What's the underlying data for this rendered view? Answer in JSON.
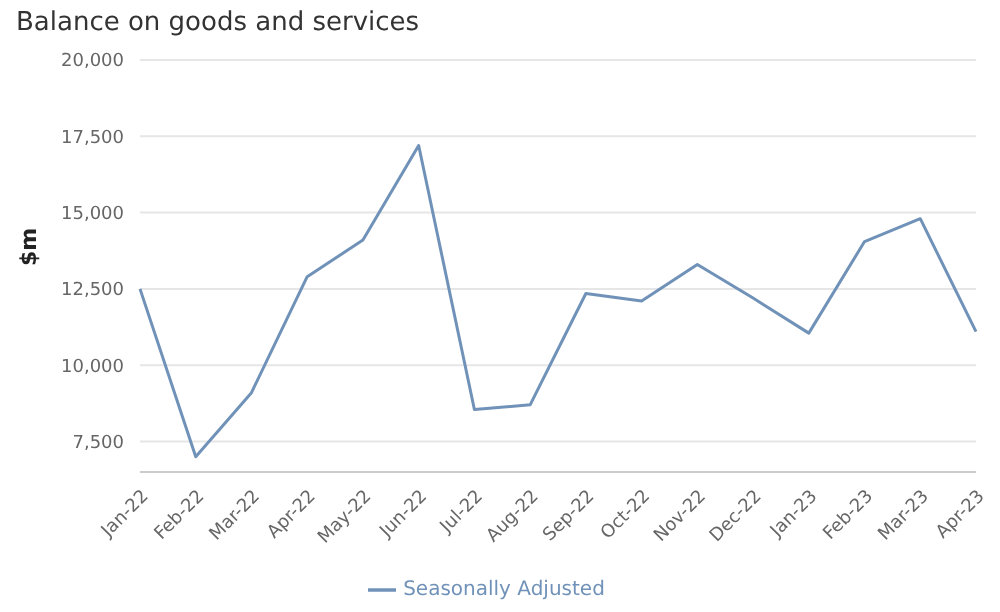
{
  "chart_data": {
    "type": "line",
    "title": "Balance on goods and services",
    "ylabel": "$m",
    "categories": [
      "Jan-22",
      "Feb-22",
      "Mar-22",
      "Apr-22",
      "May-22",
      "Jun-22",
      "Jul-22",
      "Aug-22",
      "Sep-22",
      "Oct-22",
      "Nov-22",
      "Dec-22",
      "Jan-23",
      "Feb-23",
      "Mar-23",
      "Apr-23"
    ],
    "series": [
      {
        "name": "Seasonally Adjusted",
        "color": "#7092b8",
        "values": [
          12500,
          7000,
          9100,
          12900,
          14100,
          17200,
          8550,
          8700,
          12350,
          12100,
          13300,
          12200,
          11050,
          14050,
          14800,
          11100
        ]
      }
    ],
    "ylim": [
      6500,
      20000
    ],
    "yticks": [
      {
        "value": 7500,
        "label": "7,500"
      },
      {
        "value": 10000,
        "label": "10,000"
      },
      {
        "value": 12500,
        "label": "12,500"
      },
      {
        "value": 15000,
        "label": "15,000"
      },
      {
        "value": 17500,
        "label": "17,500"
      },
      {
        "value": 20000,
        "label": "20,000"
      }
    ],
    "grid": "y",
    "legend": "bottom",
    "marker": "none",
    "line_style": "solid"
  }
}
